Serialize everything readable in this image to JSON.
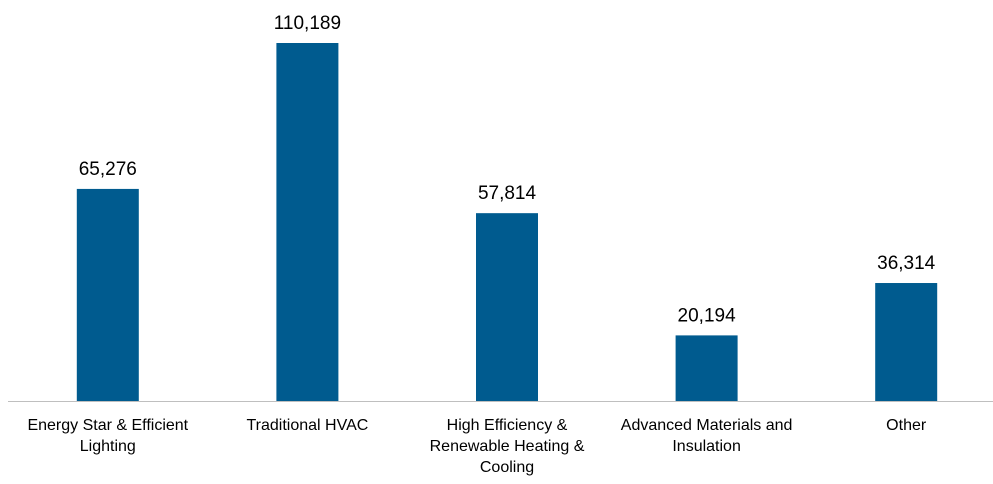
{
  "chart_data": {
    "type": "bar",
    "categories": [
      "Energy Star & Efficient Lighting",
      "Traditional HVAC",
      "High Efficiency & Renewable Heating & Cooling",
      "Advanced Materials and Insulation",
      "Other"
    ],
    "values": [
      65276,
      110189,
      57814,
      20194,
      36314
    ],
    "value_labels": [
      "65,276",
      "110,189",
      "57,814",
      "20,194",
      "36,314"
    ],
    "color": "#005b8f"
  }
}
